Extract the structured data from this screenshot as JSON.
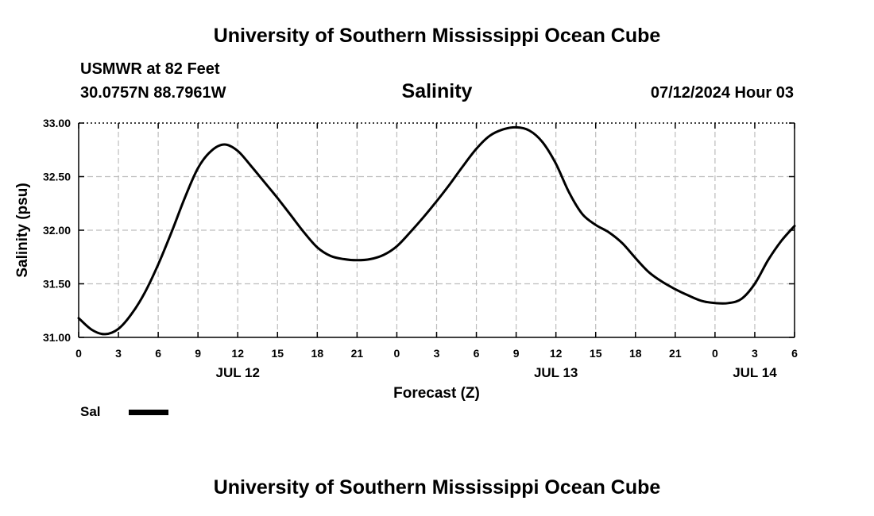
{
  "header": {
    "title_top": "University of Southern Mississippi Ocean Cube",
    "station": "USMWR at 82 Feet",
    "coords": "30.0757N  88.7961W",
    "variable": "Salinity",
    "timestamp": "07/12/2024 Hour 03",
    "title_bottom": "University of Southern Mississippi Ocean Cube"
  },
  "legend": {
    "label": "Sal"
  },
  "chart_data": {
    "type": "line",
    "title": "Salinity",
    "xlabel": "Forecast (Z)",
    "ylabel": "Salinity (psu)",
    "xlim": [
      0,
      54
    ],
    "ylim": [
      31.0,
      33.0
    ],
    "grid": true,
    "legend_position": "bottom-left",
    "x_ticks": [
      0,
      3,
      6,
      9,
      12,
      15,
      18,
      21,
      24,
      27,
      30,
      33,
      36,
      39,
      42,
      45,
      48,
      51,
      54
    ],
    "x_tick_labels": [
      "0",
      "3",
      "6",
      "9",
      "12",
      "15",
      "18",
      "21",
      "0",
      "3",
      "6",
      "9",
      "12",
      "15",
      "18",
      "21",
      "0",
      "3",
      "6"
    ],
    "date_labels": [
      {
        "x": 12,
        "label": "JUL 12"
      },
      {
        "x": 36,
        "label": "JUL 13"
      },
      {
        "x": 51,
        "label": "JUL 14"
      }
    ],
    "y_ticks": [
      31.0,
      31.5,
      32.0,
      32.5,
      33.0
    ],
    "y_tick_labels": [
      "31.00",
      "31.50",
      "32.00",
      "32.50",
      "33.00"
    ],
    "series": [
      {
        "name": "Sal",
        "color": "#000000",
        "x": [
          0,
          1,
          2,
          3,
          4,
          5,
          6,
          7,
          8,
          9,
          10,
          11,
          12,
          13,
          14,
          15,
          16,
          17,
          18,
          19,
          20,
          21,
          22,
          23,
          24,
          25,
          26,
          27,
          28,
          29,
          30,
          31,
          32,
          33,
          34,
          35,
          36,
          37,
          38,
          39,
          40,
          41,
          42,
          43,
          44,
          45,
          46,
          47,
          48,
          49,
          50,
          51,
          52,
          53,
          54
        ],
        "y": [
          31.18,
          31.07,
          31.03,
          31.08,
          31.22,
          31.42,
          31.68,
          31.98,
          32.3,
          32.58,
          32.74,
          32.8,
          32.74,
          32.6,
          32.45,
          32.3,
          32.14,
          31.98,
          31.84,
          31.76,
          31.73,
          31.72,
          31.73,
          31.77,
          31.85,
          31.98,
          32.12,
          32.27,
          32.43,
          32.6,
          32.76,
          32.88,
          32.94,
          32.96,
          32.93,
          32.82,
          32.62,
          32.35,
          32.15,
          32.05,
          31.98,
          31.88,
          31.74,
          31.61,
          31.52,
          31.45,
          31.39,
          31.34,
          31.32,
          31.32,
          31.36,
          31.5,
          31.72,
          31.9,
          32.04
        ]
      }
    ]
  }
}
